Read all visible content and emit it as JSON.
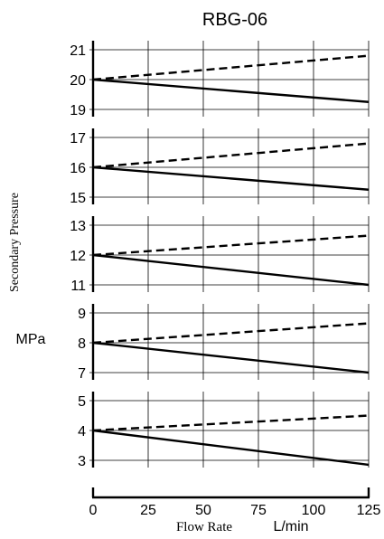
{
  "chart_data": {
    "type": "line",
    "title": "RBG-06",
    "ylabel": "Secondary Pressure",
    "ylabel_unit": "MPa",
    "xlabel": "Flow Rate",
    "xlabel_unit": "L/min",
    "xlim": [
      0,
      125
    ],
    "xticks": [
      0,
      25,
      50,
      75,
      100,
      125
    ],
    "xtick_labels": [
      "0",
      "25",
      "50",
      "75",
      "100",
      "125"
    ],
    "grid": true,
    "line_styles": {
      "dashed": "upper trend (pressure rise)",
      "solid": "lower trend (pressure drop)"
    },
    "panels": [
      {
        "ylim": [
          19,
          21
        ],
        "yticks": [
          "19",
          "20",
          "21"
        ],
        "series": [
          {
            "style": "dashed",
            "x": [
              0,
              125
            ],
            "y": [
              20,
              20.8
            ]
          },
          {
            "style": "solid",
            "x": [
              0,
              125
            ],
            "y": [
              20,
              19.25
            ]
          }
        ]
      },
      {
        "ylim": [
          15,
          17
        ],
        "yticks": [
          "15",
          "16",
          "17"
        ],
        "series": [
          {
            "style": "dashed",
            "x": [
              0,
              125
            ],
            "y": [
              16,
              16.8
            ]
          },
          {
            "style": "solid",
            "x": [
              0,
              125
            ],
            "y": [
              16,
              15.25
            ]
          }
        ]
      },
      {
        "ylim": [
          11,
          13
        ],
        "yticks": [
          "11",
          "12",
          "13"
        ],
        "series": [
          {
            "style": "dashed",
            "x": [
              0,
              125
            ],
            "y": [
              12,
              12.65
            ]
          },
          {
            "style": "solid",
            "x": [
              0,
              125
            ],
            "y": [
              12,
              11
            ]
          }
        ]
      },
      {
        "ylim": [
          7,
          9
        ],
        "yticks": [
          "7",
          "8",
          "9"
        ],
        "series": [
          {
            "style": "dashed",
            "x": [
              0,
              125
            ],
            "y": [
              8,
              8.65
            ]
          },
          {
            "style": "solid",
            "x": [
              0,
              125
            ],
            "y": [
              8,
              7
            ]
          }
        ]
      },
      {
        "ylim": [
          3,
          5
        ],
        "yticks": [
          "3",
          "4",
          "5"
        ],
        "series": [
          {
            "style": "dashed",
            "x": [
              0,
              125
            ],
            "y": [
              4,
              4.5
            ]
          },
          {
            "style": "solid",
            "x": [
              0,
              125
            ],
            "y": [
              4,
              2.85
            ]
          }
        ]
      }
    ]
  }
}
